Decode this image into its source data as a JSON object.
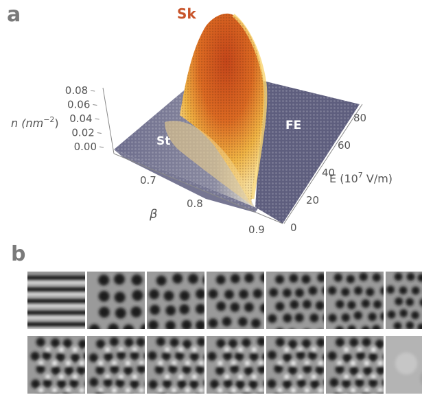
{
  "panel_a": {
    "letter": "a",
    "z_axis": {
      "label_main": "n (nm",
      "label_sup": "−2",
      "label_close": ")",
      "ticks": [
        "0.00",
        "0.02",
        "0.04",
        "0.06",
        "0.08"
      ]
    },
    "x_axis": {
      "label": "β",
      "ticks": [
        "0.7",
        "0.8",
        "0.9"
      ]
    },
    "y_axis": {
      "label_main": "E (10",
      "label_sup": "7",
      "label_close": " V/m)",
      "ticks": [
        "0",
        "20",
        "40",
        "60",
        "80"
      ]
    },
    "regions": [
      {
        "name": "Sk",
        "color": "#c8542a"
      },
      {
        "name": "St",
        "color": "#ffffff"
      },
      {
        "name": "FE",
        "color": "#ffffff"
      }
    ]
  },
  "panel_b": {
    "letter": "b",
    "rows": 2,
    "columns": 7
  },
  "chart_data": {
    "type": "scatter",
    "subtype": "3d-surface",
    "xlabel": "β",
    "ylabel": "E (10^7 V/m)",
    "zlabel": "n (nm^-2)",
    "xlim": [
      0.66,
      0.92
    ],
    "ylim": [
      0,
      85
    ],
    "zlim": [
      0,
      0.08
    ],
    "colors": {
      "surface_low": "#6e6e8e",
      "surface_mid": "#f1c04a",
      "surface_high": "#c8501e"
    },
    "peak": {
      "beta": 0.85,
      "E": 85,
      "n": 0.08
    }
  }
}
